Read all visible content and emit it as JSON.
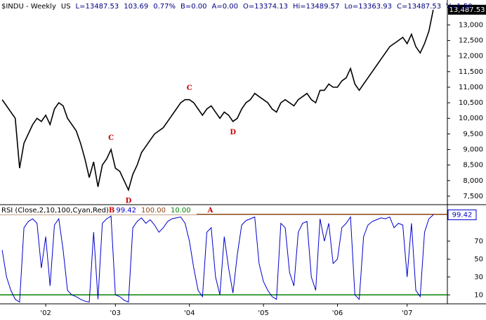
{
  "chart_data": [
    {
      "type": "line",
      "title_items": [
        "$INDU - Weekly",
        "US",
        "L=13487.53",
        "103.69",
        "0.77%",
        "B=0.00",
        "A=0.00",
        "O=13374.13",
        "Hi=13489.57",
        "Lo=13363.93",
        "C=13487.53",
        "V=1,50"
      ],
      "color": "#000000",
      "values": [
        10600,
        10400,
        10200,
        10000,
        8400,
        9200,
        9500,
        9800,
        10000,
        9900,
        10100,
        9800,
        10300,
        10500,
        10400,
        10000,
        9800,
        9600,
        9200,
        8700,
        8100,
        8600,
        7800,
        8500,
        8700,
        9000,
        8400,
        8300,
        8000,
        7700,
        8200,
        8500,
        8900,
        9100,
        9300,
        9500,
        9600,
        9700,
        9900,
        10100,
        10300,
        10500,
        10600,
        10600,
        10500,
        10300,
        10100,
        10300,
        10400,
        10200,
        10000,
        10200,
        10100,
        9900,
        10000,
        10300,
        10500,
        10600,
        10800,
        10700,
        10600,
        10500,
        10300,
        10200,
        10500,
        10600,
        10500,
        10400,
        10600,
        10700,
        10800,
        10600,
        10500,
        10900,
        10900,
        11100,
        11000,
        11000,
        11200,
        11300,
        11600,
        11100,
        10900,
        11100,
        11300,
        11500,
        11700,
        11900,
        12100,
        12300,
        12400,
        12500,
        12600,
        12400,
        12700,
        12300,
        12100,
        12400,
        12800,
        13487.53
      ],
      "last_label": "13,487.53",
      "annotations": [
        "C",
        "D",
        "C",
        "D"
      ],
      "ylim": [
        7250,
        13800
      ],
      "yticks": [
        {
          "value": 7500,
          "label": "7,500"
        },
        {
          "value": 8000,
          "label": "8,000"
        },
        {
          "value": 8500,
          "label": "8,500"
        },
        {
          "value": 9000,
          "label": "9,000"
        },
        {
          "value": 9500,
          "label": "9,500"
        },
        {
          "value": 10000,
          "label": "10,000"
        },
        {
          "value": 10500,
          "label": "10,500"
        },
        {
          "value": 11000,
          "label": "11,000"
        },
        {
          "value": 11500,
          "label": "11,500"
        },
        {
          "value": 12000,
          "label": "12,000"
        },
        {
          "value": 12500,
          "label": "12,500"
        },
        {
          "value": 13000,
          "label": "13,000"
        }
      ]
    },
    {
      "type": "line",
      "title": "RSI (Close,2,10,100,Cyan,Red)",
      "annotations": [
        "B",
        "A"
      ],
      "color": "#0000cc",
      "levels": [
        {
          "value": 100,
          "label": "100.00",
          "color": "#8b4513"
        },
        {
          "value": 10,
          "label": "10.00",
          "color": "#008000"
        }
      ],
      "categories": [
        null,
        null,
        null,
        null,
        null,
        null,
        null,
        null,
        null,
        null,
        "'02",
        null,
        null,
        null,
        null,
        null,
        null,
        null,
        null,
        null,
        null,
        null,
        null,
        null,
        null,
        null,
        "'03",
        null,
        null,
        null,
        null,
        null,
        null,
        null,
        null,
        null,
        null,
        null,
        null,
        null,
        null,
        null,
        null,
        "'04",
        null,
        null,
        null,
        null,
        null,
        null,
        null,
        null,
        null,
        null,
        null,
        null,
        null,
        null,
        null,
        null,
        "'05",
        null,
        null,
        null,
        null,
        null,
        null,
        null,
        null,
        null,
        null,
        null,
        null,
        null,
        null,
        null,
        null,
        "'06",
        null,
        null,
        null,
        null,
        null,
        null,
        null,
        null,
        null,
        null,
        null,
        null,
        null,
        null,
        null,
        "'07",
        null,
        null,
        null,
        null,
        null,
        null
      ],
      "values": [
        60,
        30,
        15,
        5,
        2,
        85,
        92,
        95,
        90,
        40,
        75,
        20,
        88,
        95,
        60,
        15,
        10,
        8,
        5,
        3,
        2,
        80,
        5,
        90,
        95,
        98,
        10,
        8,
        4,
        2,
        85,
        92,
        96,
        90,
        94,
        88,
        80,
        85,
        92,
        95,
        96,
        97,
        90,
        70,
        40,
        15,
        8,
        80,
        85,
        30,
        10,
        75,
        40,
        12,
        55,
        88,
        93,
        95,
        97,
        45,
        25,
        15,
        8,
        5,
        90,
        85,
        35,
        20,
        80,
        90,
        92,
        30,
        15,
        95,
        70,
        90,
        45,
        50,
        85,
        90,
        97,
        10,
        5,
        75,
        88,
        92,
        94,
        96,
        95,
        97,
        85,
        90,
        88,
        30,
        90,
        15,
        8,
        80,
        95,
        99.42
      ],
      "ylim": [
        0,
        110
      ],
      "yticks": [
        10,
        30,
        50,
        70
      ]
    }
  ]
}
